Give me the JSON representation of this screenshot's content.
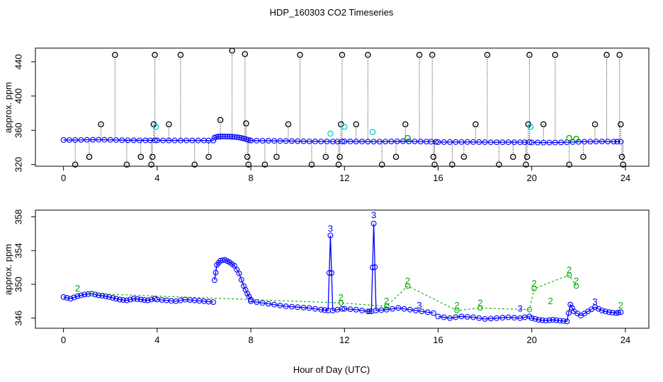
{
  "chart_data": [
    {
      "type": "scatter",
      "title": "HDP_160303  CO2 Timeseries",
      "xlabel": "",
      "ylabel": "approx. ppm",
      "xlim": [
        -1.2,
        25
      ],
      "ylim": [
        318,
        456
      ],
      "x_ticks": [
        0,
        4,
        8,
        12,
        16,
        20,
        24
      ],
      "y_ticks": [
        320,
        360,
        400,
        440
      ],
      "grid": false,
      "series": [
        {
          "name": "blue baseline",
          "color": "#0000ff",
          "segments": [
            {
              "x": [
                0.0,
                0.5,
                1.0,
                1.5,
                2.0,
                2.5,
                3.0,
                3.5,
                3.9
              ],
              "y": [
                348.7,
                348.6,
                348.9,
                349.0,
                348.8,
                348.4,
                348.3,
                348.2,
                348.3
              ]
            },
            {
              "x": [
                4.0,
                4.5,
                5.0,
                5.5,
                6.0,
                6.4
              ],
              "y": [
                348.2,
                348.1,
                348.1,
                348.1,
                348.1,
                348.0
              ]
            },
            {
              "x": [
                6.45,
                6.6,
                6.8,
                7.0,
                7.2,
                7.4,
                7.6,
                7.8,
                8.0
              ],
              "y": [
                351.5,
                352.6,
                352.8,
                352.7,
                352.5,
                352.0,
                351.0,
                349.5,
                348.0
              ]
            },
            {
              "x": [
                8.0,
                8.5,
                9.0,
                9.5,
                10.0,
                10.5,
                11.0,
                11.5,
                11.9
              ],
              "y": [
                348.0,
                347.8,
                347.7,
                347.5,
                347.3,
                347.1,
                347.0,
                346.9,
                346.9
              ]
            },
            {
              "x": [
                12.0,
                12.5,
                13.0,
                13.5,
                14.0,
                14.5,
                15.0,
                15.5,
                15.9
              ],
              "y": [
                347.0,
                346.9,
                346.8,
                346.8,
                347.0,
                347.2,
                347.0,
                346.8,
                346.5
              ]
            },
            {
              "x": [
                16.0,
                16.5,
                17.0,
                17.5,
                18.0,
                18.5,
                19.0,
                19.5,
                19.9
              ],
              "y": [
                346.2,
                346.2,
                346.3,
                346.3,
                346.1,
                346.0,
                346.1,
                346.0,
                346.1
              ]
            },
            {
              "x": [
                20.0,
                20.5,
                21.0,
                21.5,
                22.0,
                22.5,
                23.0,
                23.5,
                23.8
              ],
              "y": [
                345.8,
                345.6,
                345.7,
                346.0,
                346.5,
                346.8,
                347.0,
                346.8,
                346.7
              ]
            }
          ]
        },
        {
          "name": "black flagged",
          "color": "#000000",
          "points": [
            {
              "x": 0.5,
              "y": 320
            },
            {
              "x": 1.1,
              "y": 329
            },
            {
              "x": 1.6,
              "y": 367
            },
            {
              "x": 2.2,
              "y": 448
            },
            {
              "x": 2.7,
              "y": 320
            },
            {
              "x": 3.3,
              "y": 329
            },
            {
              "x": 3.75,
              "y": 320
            },
            {
              "x": 3.8,
              "y": 329
            },
            {
              "x": 3.85,
              "y": 367
            },
            {
              "x": 3.9,
              "y": 448
            },
            {
              "x": 4.5,
              "y": 367
            },
            {
              "x": 5.0,
              "y": 448
            },
            {
              "x": 5.6,
              "y": 320
            },
            {
              "x": 6.2,
              "y": 329
            },
            {
              "x": 6.7,
              "y": 372
            },
            {
              "x": 7.2,
              "y": 453
            },
            {
              "x": 7.75,
              "y": 449
            },
            {
              "x": 7.8,
              "y": 368
            },
            {
              "x": 7.85,
              "y": 329
            },
            {
              "x": 7.9,
              "y": 320
            },
            {
              "x": 8.6,
              "y": 320
            },
            {
              "x": 9.1,
              "y": 329
            },
            {
              "x": 9.6,
              "y": 367
            },
            {
              "x": 10.1,
              "y": 448
            },
            {
              "x": 10.6,
              "y": 320
            },
            {
              "x": 11.2,
              "y": 329
            },
            {
              "x": 11.75,
              "y": 320
            },
            {
              "x": 11.8,
              "y": 329
            },
            {
              "x": 11.85,
              "y": 367
            },
            {
              "x": 11.9,
              "y": 448
            },
            {
              "x": 12.5,
              "y": 367
            },
            {
              "x": 13.0,
              "y": 448
            },
            {
              "x": 13.6,
              "y": 320
            },
            {
              "x": 14.2,
              "y": 329
            },
            {
              "x": 14.6,
              "y": 367
            },
            {
              "x": 15.2,
              "y": 448
            },
            {
              "x": 15.75,
              "y": 448
            },
            {
              "x": 15.8,
              "y": 329
            },
            {
              "x": 15.85,
              "y": 320
            },
            {
              "x": 16.6,
              "y": 320
            },
            {
              "x": 17.1,
              "y": 329
            },
            {
              "x": 17.6,
              "y": 367
            },
            {
              "x": 18.1,
              "y": 448
            },
            {
              "x": 18.6,
              "y": 320
            },
            {
              "x": 19.2,
              "y": 329
            },
            {
              "x": 19.75,
              "y": 320
            },
            {
              "x": 19.8,
              "y": 329
            },
            {
              "x": 19.85,
              "y": 367
            },
            {
              "x": 19.9,
              "y": 448
            },
            {
              "x": 20.5,
              "y": 367
            },
            {
              "x": 21.0,
              "y": 448
            },
            {
              "x": 21.6,
              "y": 320
            },
            {
              "x": 22.2,
              "y": 329
            },
            {
              "x": 22.7,
              "y": 367
            },
            {
              "x": 23.2,
              "y": 448
            },
            {
              "x": 23.75,
              "y": 448
            },
            {
              "x": 23.8,
              "y": 367
            },
            {
              "x": 23.85,
              "y": 329
            },
            {
              "x": 23.9,
              "y": 320
            }
          ]
        },
        {
          "name": "cyan",
          "color": "#00cccc",
          "points": [
            {
              "x": 3.95,
              "y": 364
            },
            {
              "x": 11.4,
              "y": 356
            },
            {
              "x": 12.0,
              "y": 364
            },
            {
              "x": 13.2,
              "y": 358
            },
            {
              "x": 19.95,
              "y": 364
            }
          ]
        },
        {
          "name": "green",
          "color": "#00aa00",
          "points": [
            {
              "x": 14.7,
              "y": 351
            },
            {
              "x": 21.6,
              "y": 351
            },
            {
              "x": 21.9,
              "y": 350
            }
          ]
        }
      ]
    },
    {
      "type": "line",
      "title": "",
      "xlabel": "Hour of Day (UTC)",
      "ylabel": "approx. ppm",
      "xlim": [
        -1.2,
        25
      ],
      "ylim": [
        344.8,
        358.8
      ],
      "x_ticks": [
        0,
        4,
        8,
        12,
        16,
        20,
        24
      ],
      "y_ticks": [
        346,
        350,
        354,
        358
      ],
      "grid": false,
      "series": [
        {
          "name": "blue",
          "color": "#0000ff",
          "segments": [
            {
              "x": [
                0.0,
                0.3,
                0.6,
                0.9,
                1.2,
                1.5,
                1.8,
                2.1,
                2.4,
                2.7,
                3.0,
                3.3,
                3.6,
                3.9
              ],
              "y": [
                348.5,
                348.3,
                348.6,
                348.8,
                348.9,
                348.7,
                348.6,
                348.4,
                348.2,
                348.1,
                348.3,
                348.2,
                348.1,
                348.3
              ]
            },
            {
              "x": [
                4.0,
                4.4,
                4.8,
                5.2,
                5.6,
                6.0,
                6.4
              ],
              "y": [
                348.2,
                348.1,
                348.0,
                348.2,
                348.1,
                348.0,
                347.9
              ]
            },
            {
              "x": [
                6.45,
                6.55,
                6.7,
                6.9,
                7.1,
                7.3,
                7.5,
                7.7,
                7.85,
                8.0
              ],
              "y": [
                350.5,
                352.3,
                352.8,
                352.9,
                352.6,
                352.2,
                351.3,
                349.8,
                348.9,
                348.2
              ]
            },
            {
              "x": [
                8.0,
                8.5,
                9.0,
                9.5,
                10.0,
                10.5,
                11.0,
                11.3,
                11.4,
                11.5,
                11.9
              ],
              "y": [
                348.0,
                347.8,
                347.6,
                347.4,
                347.3,
                347.2,
                347.0,
                346.9,
                355.8,
                346.9,
                347.1
              ]
            },
            {
              "x": [
                12.0,
                12.5,
                13.0,
                13.15,
                13.25,
                13.35,
                13.8,
                14.3,
                14.8,
                15.3,
                15.8
              ],
              "y": [
                347.1,
                347.0,
                346.8,
                346.8,
                357.2,
                346.9,
                347.0,
                347.2,
                347.0,
                346.8,
                346.6
              ]
            },
            {
              "x": [
                16.0,
                16.5,
                17.0,
                17.5,
                18.0,
                18.5,
                19.0,
                19.5,
                19.9
              ],
              "y": [
                346.2,
                346.0,
                346.2,
                346.1,
                345.9,
                346.0,
                346.1,
                346.0,
                346.2
              ]
            },
            {
              "x": [
                20.0,
                20.3,
                20.6,
                20.9,
                21.2,
                21.5,
                21.65,
                21.8,
                22.1,
                22.4,
                22.7,
                23.0,
                23.3,
                23.6,
                23.8
              ],
              "y": [
                346.0,
                345.8,
                345.7,
                345.8,
                345.7,
                345.6,
                347.6,
                346.8,
                346.3,
                346.8,
                347.3,
                346.9,
                346.7,
                346.6,
                346.7
              ]
            }
          ]
        },
        {
          "name": "green",
          "color": "#00aa00",
          "x": [
            1.2,
            11.85,
            13.8,
            14.7,
            16.8,
            17.8,
            19.9,
            20.1,
            21.6,
            21.9
          ],
          "y": [
            348.9,
            347.8,
            347.4,
            349.8,
            346.9,
            347.2,
            347.0,
            349.5,
            351.1,
            349.8
          ]
        }
      ],
      "annotations": [
        {
          "text": "3",
          "x": 11.4,
          "y": 356.0,
          "color": "#0000ff"
        },
        {
          "text": "3",
          "x": 13.25,
          "y": 357.6,
          "color": "#0000ff"
        },
        {
          "text": "2",
          "x": 0.6,
          "y": 348.9,
          "color": "#00aa00"
        },
        {
          "text": "2",
          "x": 11.85,
          "y": 347.8,
          "color": "#00aa00"
        },
        {
          "text": "2",
          "x": 13.8,
          "y": 347.4,
          "color": "#00aa00"
        },
        {
          "text": "2",
          "x": 14.7,
          "y": 349.8,
          "color": "#00aa00"
        },
        {
          "text": "3",
          "x": 15.2,
          "y": 346.9,
          "color": "#0000ff"
        },
        {
          "text": "2",
          "x": 16.8,
          "y": 346.9,
          "color": "#00aa00"
        },
        {
          "text": "2",
          "x": 17.8,
          "y": 347.2,
          "color": "#00aa00"
        },
        {
          "text": "3",
          "x": 19.5,
          "y": 346.5,
          "color": "#0000ff"
        },
        {
          "text": "2",
          "x": 20.1,
          "y": 349.5,
          "color": "#00aa00"
        },
        {
          "text": "2",
          "x": 20.8,
          "y": 347.4,
          "color": "#00aa00"
        },
        {
          "text": "2",
          "x": 21.6,
          "y": 351.1,
          "color": "#00aa00"
        },
        {
          "text": "2",
          "x": 21.9,
          "y": 349.8,
          "color": "#00aa00"
        },
        {
          "text": "3",
          "x": 22.7,
          "y": 347.3,
          "color": "#0000ff"
        },
        {
          "text": "2",
          "x": 23.8,
          "y": 346.9,
          "color": "#00aa00"
        }
      ]
    }
  ]
}
